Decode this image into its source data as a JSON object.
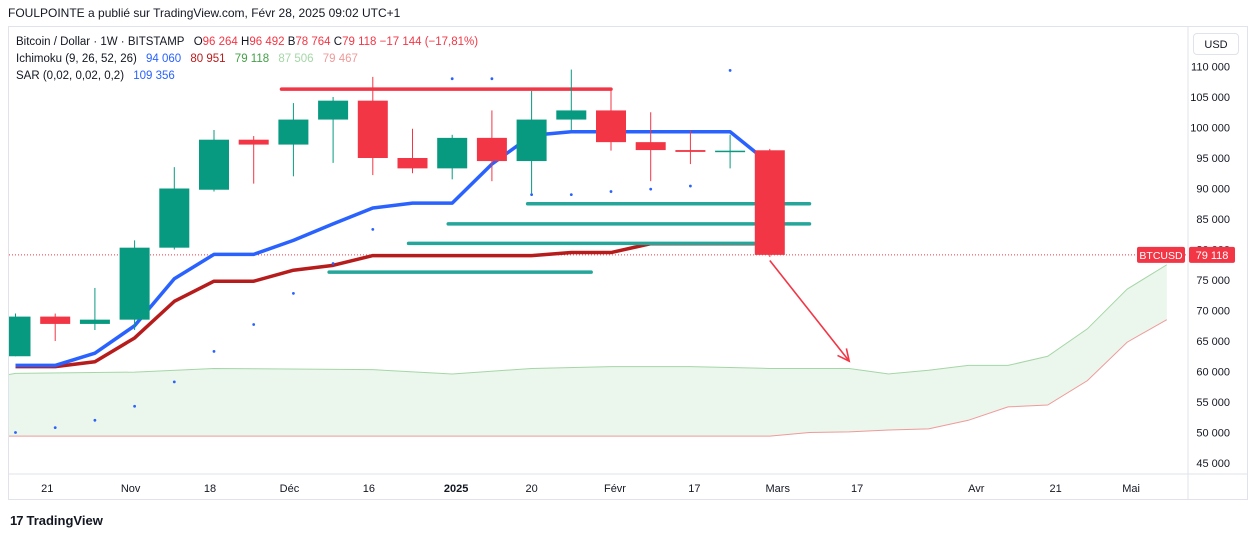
{
  "header": {
    "attribution": "FOULPOINTE a publié sur TradingView.com, Févr 28, 2025 09:02 UTC+1"
  },
  "legend": {
    "symbol": "Bitcoin / Dollar · 1W · BITSTAMP",
    "ohlc": {
      "o_label": "O",
      "o": "96 264",
      "h_label": "H",
      "h": "96 492",
      "l_label": "B",
      "l": "78 764",
      "c_label": "C",
      "c": "79 118",
      "change": "−17 144 (−17,81%)"
    },
    "ichimoku": {
      "label": "Ichimoku (9, 26, 52, 26)",
      "v1": "94 060",
      "v2": "80 951",
      "v3": "79 118",
      "v4": "87 506",
      "v5": "79 467"
    },
    "sar": {
      "label": "SAR (0,02, 0,02, 0,2)",
      "v": "109 356"
    }
  },
  "currency_button": "USD",
  "price_tag": {
    "symbol": "BTCUSD",
    "price": "79 118"
  },
  "footer": {
    "logo": "17",
    "brand": "TradingView"
  },
  "colors": {
    "up": "#089981",
    "down": "#f23645",
    "tenkan": "#2962ff",
    "kijun": "#b71c1c",
    "cloud_fill": "#e8f5e9",
    "span_a": "#a5d6a7",
    "span_b": "#ef9a9a",
    "sar": "#2962ff",
    "resistance": "#f23645",
    "support": "#26a69a",
    "arrow": "#f23645"
  },
  "chart_data": {
    "type": "candlestick",
    "timeframe": "1W",
    "y_ticks": [
      45000,
      50000,
      55000,
      60000,
      65000,
      70000,
      75000,
      80000,
      85000,
      90000,
      95000,
      100000,
      105000,
      110000
    ],
    "y_tick_labels": [
      "45 000",
      "50 000",
      "55 000",
      "60 000",
      "65 000",
      "70 000",
      "75 000",
      "80 000",
      "85 000",
      "90 000",
      "95 000",
      "100 000",
      "105 000",
      "110 000"
    ],
    "ylim": [
      43000,
      114500
    ],
    "x_ticks": [
      {
        "label": "21",
        "x": 0.8,
        "bold": false
      },
      {
        "label": "Nov",
        "x": 2.9,
        "bold": false
      },
      {
        "label": "18",
        "x": 4.9,
        "bold": false
      },
      {
        "label": "Déc",
        "x": 6.9,
        "bold": false
      },
      {
        "label": "16",
        "x": 8.9,
        "bold": false
      },
      {
        "label": "2025",
        "x": 11.1,
        "bold": true
      },
      {
        "label": "20",
        "x": 13.0,
        "bold": false
      },
      {
        "label": "Févr",
        "x": 15.1,
        "bold": false
      },
      {
        "label": "17",
        "x": 17.1,
        "bold": false
      },
      {
        "label": "Mars",
        "x": 19.2,
        "bold": false
      },
      {
        "label": "17",
        "x": 21.2,
        "bold": false
      },
      {
        "label": "Avr",
        "x": 24.2,
        "bold": false
      },
      {
        "label": "21",
        "x": 26.2,
        "bold": false
      },
      {
        "label": "Mai",
        "x": 28.1,
        "bold": false
      }
    ],
    "candles": [
      {
        "x": 0,
        "o": 62500,
        "h": 69500,
        "l": 62500,
        "c": 69000
      },
      {
        "x": 1,
        "o": 69000,
        "h": 69500,
        "l": 65000,
        "c": 67800
      },
      {
        "x": 2,
        "o": 67800,
        "h": 73700,
        "l": 66800,
        "c": 68500
      },
      {
        "x": 3,
        "o": 68500,
        "h": 81500,
        "l": 66800,
        "c": 80300
      },
      {
        "x": 4,
        "o": 80300,
        "h": 93500,
        "l": 80000,
        "c": 90000
      },
      {
        "x": 5,
        "o": 89800,
        "h": 99600,
        "l": 89500,
        "c": 98000
      },
      {
        "x": 6,
        "o": 98000,
        "h": 98600,
        "l": 90800,
        "c": 97200
      },
      {
        "x": 7,
        "o": 97200,
        "h": 104000,
        "l": 92000,
        "c": 101300
      },
      {
        "x": 8,
        "o": 101300,
        "h": 105000,
        "l": 94200,
        "c": 104400
      },
      {
        "x": 9,
        "o": 104400,
        "h": 108300,
        "l": 92200,
        "c": 95000
      },
      {
        "x": 10,
        "o": 95000,
        "h": 99800,
        "l": 92500,
        "c": 93300
      },
      {
        "x": 11,
        "o": 93300,
        "h": 98800,
        "l": 91500,
        "c": 98300
      },
      {
        "x": 12,
        "o": 98300,
        "h": 102800,
        "l": 91200,
        "c": 94500
      },
      {
        "x": 13,
        "o": 94500,
        "h": 106000,
        "l": 89200,
        "c": 101300
      },
      {
        "x": 14,
        "o": 101300,
        "h": 109500,
        "l": 99500,
        "c": 102800
      },
      {
        "x": 15,
        "o": 102800,
        "h": 106500,
        "l": 96200,
        "c": 97600
      },
      {
        "x": 16,
        "o": 97600,
        "h": 102500,
        "l": 91200,
        "c": 96300
      },
      {
        "x": 17,
        "o": 96300,
        "h": 99500,
        "l": 94000,
        "c": 96000
      },
      {
        "x": 18,
        "o": 96000,
        "h": 98800,
        "l": 93300,
        "c": 96200
      },
      {
        "x": 19,
        "o": 96264,
        "h": 96492,
        "l": 78764,
        "c": 79118
      }
    ],
    "tenkan_sen": [
      {
        "x": 0,
        "y": 61000
      },
      {
        "x": 1,
        "y": 61000
      },
      {
        "x": 2,
        "y": 63000
      },
      {
        "x": 3,
        "y": 67500
      },
      {
        "x": 4,
        "y": 75200
      },
      {
        "x": 5,
        "y": 79200
      },
      {
        "x": 6,
        "y": 79200
      },
      {
        "x": 7,
        "y": 81500
      },
      {
        "x": 8,
        "y": 84200
      },
      {
        "x": 9,
        "y": 86800
      },
      {
        "x": 10,
        "y": 87600
      },
      {
        "x": 11,
        "y": 87600
      },
      {
        "x": 12,
        "y": 94000
      },
      {
        "x": 13,
        "y": 98700
      },
      {
        "x": 14,
        "y": 99300
      },
      {
        "x": 15,
        "y": 99300
      },
      {
        "x": 16,
        "y": 99300
      },
      {
        "x": 17,
        "y": 99300
      },
      {
        "x": 18,
        "y": 99300
      },
      {
        "x": 19,
        "y": 94060
      }
    ],
    "kijun_sen": [
      {
        "x": 0,
        "y": 60800
      },
      {
        "x": 1,
        "y": 60800
      },
      {
        "x": 2,
        "y": 61600
      },
      {
        "x": 3,
        "y": 65500
      },
      {
        "x": 4,
        "y": 71500
      },
      {
        "x": 5,
        "y": 74800
      },
      {
        "x": 6,
        "y": 74800
      },
      {
        "x": 7,
        "y": 76600
      },
      {
        "x": 8,
        "y": 77400
      },
      {
        "x": 9,
        "y": 79000
      },
      {
        "x": 10,
        "y": 79000
      },
      {
        "x": 11,
        "y": 79000
      },
      {
        "x": 12,
        "y": 79000
      },
      {
        "x": 13,
        "y": 79000
      },
      {
        "x": 14,
        "y": 79500
      },
      {
        "x": 15,
        "y": 79500
      },
      {
        "x": 16,
        "y": 80951
      },
      {
        "x": 17,
        "y": 80951
      },
      {
        "x": 18,
        "y": 80951
      },
      {
        "x": 19,
        "y": 80951
      }
    ],
    "senkou_span_a": [
      {
        "x": -1,
        "y": 58500
      },
      {
        "x": 0,
        "y": 59700
      },
      {
        "x": 3,
        "y": 59900
      },
      {
        "x": 5,
        "y": 60500
      },
      {
        "x": 9,
        "y": 60300
      },
      {
        "x": 11,
        "y": 59600
      },
      {
        "x": 13,
        "y": 60500
      },
      {
        "x": 15,
        "y": 60800
      },
      {
        "x": 17,
        "y": 60800
      },
      {
        "x": 19,
        "y": 60500
      },
      {
        "x": 21,
        "y": 60500
      },
      {
        "x": 22,
        "y": 59600
      },
      {
        "x": 23,
        "y": 60200
      },
      {
        "x": 24,
        "y": 61000
      },
      {
        "x": 25,
        "y": 61000
      },
      {
        "x": 26,
        "y": 62500
      },
      {
        "x": 27,
        "y": 67000
      },
      {
        "x": 28,
        "y": 73500
      },
      {
        "x": 29,
        "y": 77500
      }
    ],
    "senkou_span_b": [
      {
        "x": -1,
        "y": 49400
      },
      {
        "x": 5,
        "y": 49400
      },
      {
        "x": 18,
        "y": 49400
      },
      {
        "x": 19,
        "y": 49400
      },
      {
        "x": 20,
        "y": 50000
      },
      {
        "x": 21,
        "y": 50100
      },
      {
        "x": 22,
        "y": 50400
      },
      {
        "x": 23,
        "y": 50600
      },
      {
        "x": 24,
        "y": 52000
      },
      {
        "x": 25,
        "y": 54200
      },
      {
        "x": 26,
        "y": 54500
      },
      {
        "x": 27,
        "y": 58500
      },
      {
        "x": 28,
        "y": 64800
      },
      {
        "x": 29,
        "y": 68500
      }
    ],
    "sar_points": [
      {
        "x": 0,
        "y": 50000
      },
      {
        "x": 1,
        "y": 50800
      },
      {
        "x": 2,
        "y": 52000
      },
      {
        "x": 3,
        "y": 54300
      },
      {
        "x": 4,
        "y": 58300
      },
      {
        "x": 5,
        "y": 63300
      },
      {
        "x": 6,
        "y": 67700
      },
      {
        "x": 7,
        "y": 72800
      },
      {
        "x": 8,
        "y": 77700
      },
      {
        "x": 9,
        "y": 83300
      },
      {
        "x": 11,
        "y": 108000
      },
      {
        "x": 12,
        "y": 108000
      },
      {
        "x": 13,
        "y": 89000
      },
      {
        "x": 14,
        "y": 89000
      },
      {
        "x": 15,
        "y": 89500
      },
      {
        "x": 16,
        "y": 89900
      },
      {
        "x": 17,
        "y": 90400
      },
      {
        "x": 18,
        "y": 109356
      }
    ],
    "horizontal_lines": [
      {
        "name": "resistance",
        "color": "resistance",
        "x1": 6.7,
        "x2": 15.0,
        "y": 106300
      },
      {
        "name": "support-1",
        "color": "support",
        "x1": 12.9,
        "x2": 20.0,
        "y": 87500
      },
      {
        "name": "support-2",
        "color": "support",
        "x1": 10.9,
        "x2": 20.0,
        "y": 84200
      },
      {
        "name": "support-3",
        "color": "support",
        "x1": 9.9,
        "x2": 19.2,
        "y": 81000
      },
      {
        "name": "support-4",
        "color": "support",
        "x1": 7.9,
        "x2": 14.5,
        "y": 76300
      }
    ],
    "arrow": {
      "x1": 19.0,
      "y1": 78200,
      "x2": 21.0,
      "y2": 61700
    },
    "current_price": 79118
  }
}
